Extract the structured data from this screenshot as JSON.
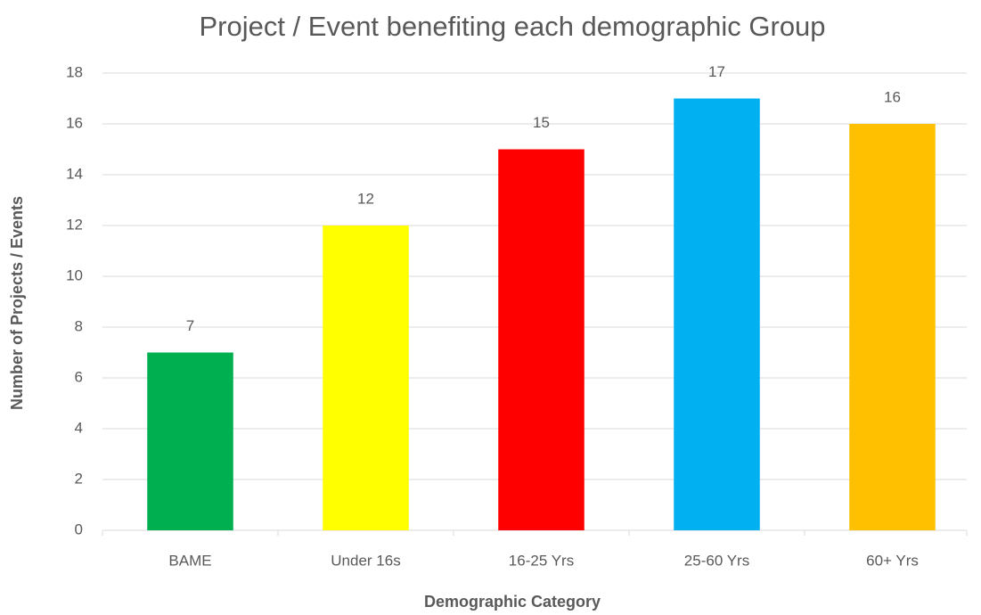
{
  "chart_data": {
    "type": "bar",
    "title": "Project / Event benefiting each demographic Group",
    "xlabel": "Demographic Category",
    "ylabel": "Number of Projects / Events",
    "categories": [
      "BAME",
      "Under 16s",
      "16-25 Yrs",
      "25-60 Yrs",
      "60+ Yrs"
    ],
    "values": [
      7,
      12,
      15,
      17,
      16
    ],
    "colors": [
      "#00b050",
      "#ffff00",
      "#ff0000",
      "#00b0f0",
      "#ffc000"
    ],
    "ylim": [
      0,
      18
    ],
    "yticks": [
      0,
      2,
      4,
      6,
      8,
      10,
      12,
      14,
      16,
      18
    ],
    "grid": true
  }
}
